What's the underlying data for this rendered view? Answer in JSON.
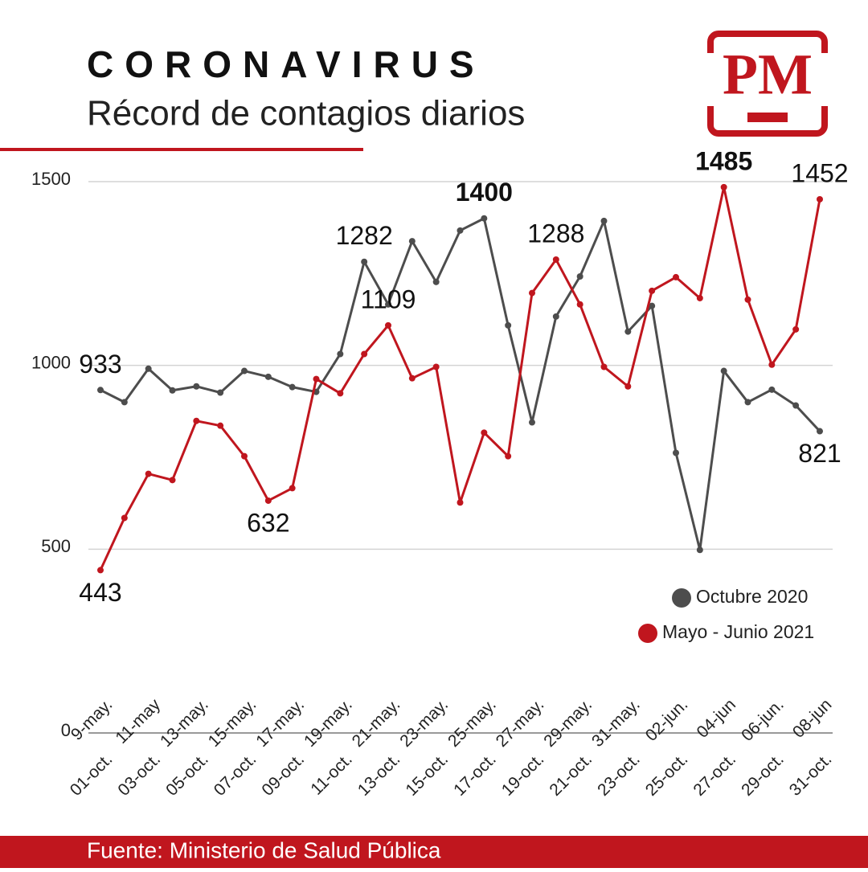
{
  "logo": "PM",
  "chart_data": {
    "type": "line",
    "title": "CORONAVIRUS",
    "subtitle": "Récord de contagios diarios",
    "source": "Fuente: Ministerio de Salud Pública",
    "categories": [
      "01-oct.",
      null,
      "03-oct.",
      null,
      "05-oct.",
      null,
      "07-oct.",
      null,
      "09-oct.",
      null,
      "11-oct.",
      null,
      "13-oct.",
      null,
      "15-oct.",
      null,
      "17-oct.",
      null,
      "19-oct.",
      null,
      "21-oct.",
      null,
      "23-oct.",
      null,
      "25-oct.",
      null,
      "27-oct.",
      null,
      "29-oct.",
      null,
      "31-oct."
    ],
    "categories2": [
      "9-may.",
      null,
      "11-may",
      null,
      "13-may.",
      null,
      "15-may.",
      null,
      "17-may.",
      null,
      "19-may.",
      null,
      "21-may.",
      null,
      "23-may.",
      null,
      "25-may.",
      null,
      "27-may.",
      null,
      "29-may.",
      null,
      "31-may.",
      null,
      "02-jun.",
      null,
      "04-jun",
      null,
      "06-jun.",
      null,
      "08-jun"
    ],
    "series": [
      {
        "name": "Octubre 2020",
        "color": "#4d4d4d",
        "values": [
          933,
          900,
          991,
          932,
          943,
          926,
          985,
          969,
          941,
          928,
          1031,
          1282,
          1166,
          1338,
          1227,
          1367,
          1400,
          1109,
          845,
          1133,
          1242,
          1393,
          1092,
          1162,
          762,
          498,
          985,
          900,
          934,
          891,
          821
        ],
        "value_labels": [
          "933",
          null,
          null,
          null,
          null,
          null,
          null,
          null,
          null,
          null,
          null,
          "1282",
          null,
          null,
          null,
          null,
          "1400",
          null,
          null,
          null,
          null,
          null,
          null,
          null,
          null,
          null,
          null,
          null,
          null,
          null,
          "821"
        ]
      },
      {
        "name": "Mayo - Junio 2021",
        "color": "#c0161e",
        "values": [
          443,
          585,
          705,
          688,
          849,
          836,
          753,
          632,
          666,
          963,
          924,
          1031,
          1109,
          965,
          996,
          627,
          817,
          753,
          1197,
          1288,
          1166,
          996,
          943,
          1203,
          1240,
          1183,
          1485,
          1179,
          1002,
          1098,
          1452
        ],
        "value_labels": [
          "443",
          null,
          null,
          null,
          null,
          null,
          null,
          "632",
          null,
          null,
          null,
          null,
          "1109",
          null,
          null,
          null,
          null,
          null,
          null,
          "1288",
          null,
          null,
          null,
          null,
          null,
          null,
          "1485",
          null,
          null,
          null,
          "1452"
        ]
      }
    ],
    "ylim": [
      0,
      1500
    ],
    "yticks": [
      0,
      500,
      1000,
      1500
    ],
    "grid": true,
    "legend": "lower-right"
  }
}
